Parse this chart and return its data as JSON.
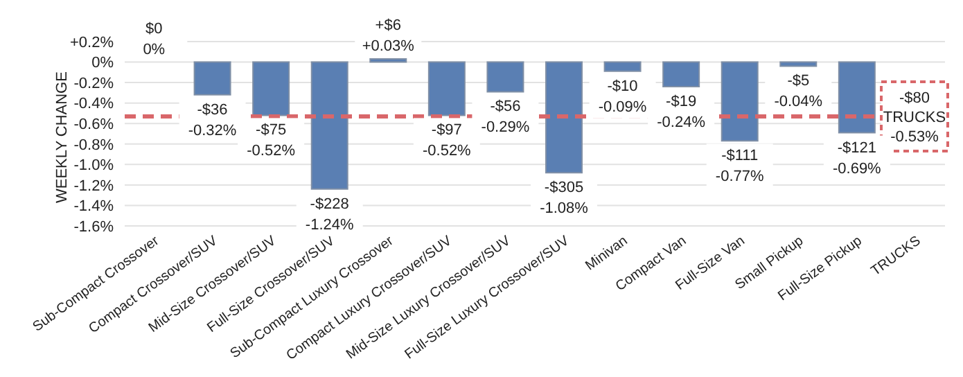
{
  "chart_data": {
    "type": "bar",
    "ylabel": "WEEKLY CHANGE",
    "categories": [
      "Sub-Compact Crossover",
      "Compact Crossover/SUV",
      "Mid-Size Crossover/SUV",
      "Full-Size Crossover/SUV",
      "Sub-Compact Luxury Crossover",
      "Compact Luxury Crossover/SUV",
      "Mid-Size Luxury Crossover/SUV",
      "Full-Size Luxury Crossover/SUV",
      "Minivan",
      "Compact Van",
      "Full-Size Van",
      "Small Pickup",
      "Full-Size Pickup",
      "TRUCKS"
    ],
    "values": [
      0,
      -0.32,
      -0.52,
      -1.24,
      0.03,
      -0.52,
      -0.29,
      -1.08,
      -0.09,
      -0.24,
      -0.77,
      -0.04,
      -0.69,
      null
    ],
    "value_labels": [
      "$0\n0%",
      "-$36\n-0.32%",
      "-$75\n-0.52%",
      "-$228\n-1.24%",
      "+$6\n+0.03%",
      "-$97\n-0.52%",
      "-$56\n-0.29%",
      "-$305\n-1.08%",
      "-$10\n-0.09%",
      "-$19\n-0.24%",
      "-$111\n-0.77%",
      "-$5\n-0.04%",
      "-$121\n-0.69%",
      null
    ],
    "color": "#5a7fb3",
    "ylim": [
      -1.6,
      0.2
    ],
    "yticks": [
      {
        "value": 0.2,
        "label": "+0.2%"
      },
      {
        "value": 0,
        "label": "0%"
      },
      {
        "value": -0.2,
        "label": "-0.2%"
      },
      {
        "value": -0.4,
        "label": "-0.4%"
      },
      {
        "value": -0.6,
        "label": "-0.6%"
      },
      {
        "value": -0.8,
        "label": "-0.8%"
      },
      {
        "value": -1.0,
        "label": "-1.0%"
      },
      {
        "value": -1.2,
        "label": "-1.2%"
      },
      {
        "value": -1.4,
        "label": "-1.4%"
      },
      {
        "value": -1.6,
        "label": "-1.6%"
      }
    ],
    "ref_lines": [
      {
        "axis": "y",
        "value": -0.53,
        "label": "-$80\nTRUCKS\n-0.53%",
        "color": "#d9676a",
        "line_style": "dashed"
      }
    ],
    "grid": "y",
    "legend": false
  }
}
